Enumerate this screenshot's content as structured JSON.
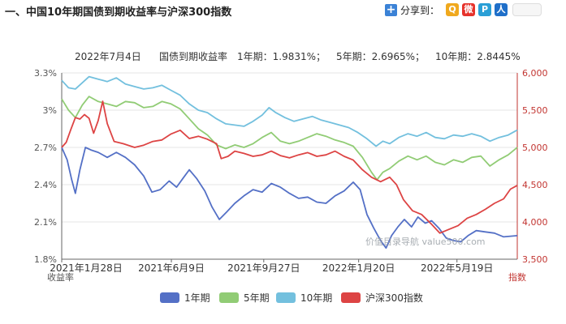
{
  "page_title": "一、中国10年期国债到期收益率与沪深300指数",
  "share": {
    "label": "分享到：",
    "plus_icon": "+",
    "buttons": [
      {
        "name": "qzone",
        "glyph": "Q",
        "color": "#f0a91e"
      },
      {
        "name": "weibo",
        "glyph": "微",
        "color": "#e6322b"
      },
      {
        "name": "tencent",
        "glyph": "P",
        "color": "#2a9fd6"
      },
      {
        "name": "renren",
        "glyph": "人",
        "color": "#1f6fc9"
      }
    ]
  },
  "chart_data": {
    "type": "line",
    "header": {
      "date": "2022年7月4日",
      "name": "国债到期收益率",
      "items": [
        "1年期：1.9831%；",
        "5年期：2.6965%；",
        "10年期：2.8445%"
      ]
    },
    "x_ticks": [
      {
        "label": "2021年1月28日",
        "t": 0.0
      },
      {
        "label": "2021年6月9日",
        "t": 0.2407
      },
      {
        "label": "2021年9月27日",
        "t": 0.4435
      },
      {
        "label": "2022年1月20日",
        "t": 0.6518
      },
      {
        "label": "2022年5月19日",
        "t": 0.8676
      }
    ],
    "left_axis": {
      "label": "收益率",
      "min": 1.8,
      "max": 3.3,
      "ticks": [
        {
          "v": 1.8,
          "label": "1.8%"
        },
        {
          "v": 2.1,
          "label": "2.1%"
        },
        {
          "v": 2.4,
          "label": "2.4%"
        },
        {
          "v": 2.7,
          "label": "2.7%"
        },
        {
          "v": 3.0,
          "label": "3%"
        },
        {
          "v": 3.3,
          "label": "3.3%"
        }
      ]
    },
    "right_axis": {
      "label": "指数",
      "min": 3500,
      "max": 6000,
      "ticks": [
        {
          "v": 3500,
          "label": "3,500"
        },
        {
          "v": 4000,
          "label": "4,000"
        },
        {
          "v": 4500,
          "label": "4,500"
        },
        {
          "v": 5000,
          "label": "5,000"
        },
        {
          "v": 5500,
          "label": "5,500"
        },
        {
          "v": 6000,
          "label": "6,000"
        }
      ]
    },
    "watermark": "价值目录导航 value500.com",
    "series": [
      {
        "name": "1年期",
        "color": "#5470c6",
        "axis": "left",
        "points": [
          [
            0.0,
            2.7
          ],
          [
            0.012,
            2.6
          ],
          [
            0.022,
            2.44
          ],
          [
            0.03,
            2.33
          ],
          [
            0.04,
            2.52
          ],
          [
            0.052,
            2.7
          ],
          [
            0.064,
            2.68
          ],
          [
            0.08,
            2.66
          ],
          [
            0.1,
            2.62
          ],
          [
            0.12,
            2.66
          ],
          [
            0.14,
            2.62
          ],
          [
            0.16,
            2.56
          ],
          [
            0.18,
            2.47
          ],
          [
            0.198,
            2.34
          ],
          [
            0.216,
            2.36
          ],
          [
            0.236,
            2.43
          ],
          [
            0.252,
            2.38
          ],
          [
            0.268,
            2.46
          ],
          [
            0.28,
            2.52
          ],
          [
            0.296,
            2.45
          ],
          [
            0.314,
            2.35
          ],
          [
            0.33,
            2.22
          ],
          [
            0.346,
            2.12
          ],
          [
            0.362,
            2.18
          ],
          [
            0.38,
            2.25
          ],
          [
            0.4,
            2.31
          ],
          [
            0.42,
            2.36
          ],
          [
            0.44,
            2.34
          ],
          [
            0.46,
            2.41
          ],
          [
            0.48,
            2.38
          ],
          [
            0.5,
            2.33
          ],
          [
            0.52,
            2.29
          ],
          [
            0.54,
            2.3
          ],
          [
            0.56,
            2.26
          ],
          [
            0.58,
            2.25
          ],
          [
            0.6,
            2.31
          ],
          [
            0.62,
            2.35
          ],
          [
            0.64,
            2.42
          ],
          [
            0.655,
            2.36
          ],
          [
            0.67,
            2.16
          ],
          [
            0.685,
            2.05
          ],
          [
            0.7,
            1.95
          ],
          [
            0.712,
            1.89
          ],
          [
            0.724,
            1.99
          ],
          [
            0.738,
            2.06
          ],
          [
            0.752,
            2.12
          ],
          [
            0.768,
            2.06
          ],
          [
            0.782,
            2.14
          ],
          [
            0.798,
            2.09
          ],
          [
            0.812,
            2.11
          ],
          [
            0.828,
            2.05
          ],
          [
            0.844,
            1.97
          ],
          [
            0.86,
            1.95
          ],
          [
            0.876,
            1.94
          ],
          [
            0.892,
            1.99
          ],
          [
            0.91,
            2.03
          ],
          [
            0.93,
            2.02
          ],
          [
            0.95,
            2.01
          ],
          [
            0.97,
            1.98
          ],
          [
            1.0,
            1.99
          ]
        ]
      },
      {
        "name": "5年期",
        "color": "#91cc75",
        "axis": "left",
        "points": [
          [
            0.0,
            3.09
          ],
          [
            0.015,
            3.0
          ],
          [
            0.03,
            2.94
          ],
          [
            0.045,
            3.04
          ],
          [
            0.06,
            3.11
          ],
          [
            0.08,
            3.07
          ],
          [
            0.1,
            3.05
          ],
          [
            0.12,
            3.03
          ],
          [
            0.14,
            3.07
          ],
          [
            0.16,
            3.06
          ],
          [
            0.18,
            3.02
          ],
          [
            0.2,
            3.03
          ],
          [
            0.22,
            3.07
          ],
          [
            0.24,
            3.05
          ],
          [
            0.26,
            3.01
          ],
          [
            0.28,
            2.93
          ],
          [
            0.3,
            2.85
          ],
          [
            0.32,
            2.8
          ],
          [
            0.34,
            2.72
          ],
          [
            0.36,
            2.69
          ],
          [
            0.38,
            2.72
          ],
          [
            0.4,
            2.7
          ],
          [
            0.42,
            2.73
          ],
          [
            0.44,
            2.78
          ],
          [
            0.46,
            2.82
          ],
          [
            0.48,
            2.75
          ],
          [
            0.5,
            2.73
          ],
          [
            0.52,
            2.75
          ],
          [
            0.54,
            2.78
          ],
          [
            0.56,
            2.81
          ],
          [
            0.58,
            2.79
          ],
          [
            0.6,
            2.76
          ],
          [
            0.62,
            2.74
          ],
          [
            0.64,
            2.71
          ],
          [
            0.66,
            2.62
          ],
          [
            0.68,
            2.5
          ],
          [
            0.692,
            2.44
          ],
          [
            0.705,
            2.5
          ],
          [
            0.72,
            2.53
          ],
          [
            0.74,
            2.59
          ],
          [
            0.76,
            2.63
          ],
          [
            0.78,
            2.6
          ],
          [
            0.8,
            2.63
          ],
          [
            0.82,
            2.58
          ],
          [
            0.84,
            2.56
          ],
          [
            0.86,
            2.6
          ],
          [
            0.88,
            2.58
          ],
          [
            0.9,
            2.62
          ],
          [
            0.92,
            2.63
          ],
          [
            0.94,
            2.55
          ],
          [
            0.96,
            2.6
          ],
          [
            0.98,
            2.64
          ],
          [
            1.0,
            2.7
          ]
        ]
      },
      {
        "name": "10年期",
        "color": "#73c0de",
        "axis": "left",
        "points": [
          [
            0.0,
            3.24
          ],
          [
            0.015,
            3.18
          ],
          [
            0.03,
            3.17
          ],
          [
            0.045,
            3.22
          ],
          [
            0.06,
            3.27
          ],
          [
            0.08,
            3.25
          ],
          [
            0.1,
            3.23
          ],
          [
            0.12,
            3.26
          ],
          [
            0.14,
            3.21
          ],
          [
            0.16,
            3.19
          ],
          [
            0.18,
            3.17
          ],
          [
            0.2,
            3.18
          ],
          [
            0.22,
            3.2
          ],
          [
            0.24,
            3.16
          ],
          [
            0.26,
            3.12
          ],
          [
            0.28,
            3.05
          ],
          [
            0.3,
            3.0
          ],
          [
            0.32,
            2.98
          ],
          [
            0.34,
            2.93
          ],
          [
            0.36,
            2.89
          ],
          [
            0.38,
            2.88
          ],
          [
            0.4,
            2.87
          ],
          [
            0.42,
            2.91
          ],
          [
            0.44,
            2.96
          ],
          [
            0.455,
            3.02
          ],
          [
            0.47,
            2.98
          ],
          [
            0.49,
            2.94
          ],
          [
            0.51,
            2.91
          ],
          [
            0.53,
            2.93
          ],
          [
            0.55,
            2.95
          ],
          [
            0.57,
            2.92
          ],
          [
            0.59,
            2.9
          ],
          [
            0.61,
            2.88
          ],
          [
            0.63,
            2.86
          ],
          [
            0.65,
            2.82
          ],
          [
            0.67,
            2.77
          ],
          [
            0.69,
            2.71
          ],
          [
            0.705,
            2.75
          ],
          [
            0.72,
            2.73
          ],
          [
            0.74,
            2.78
          ],
          [
            0.76,
            2.81
          ],
          [
            0.78,
            2.79
          ],
          [
            0.8,
            2.82
          ],
          [
            0.82,
            2.78
          ],
          [
            0.84,
            2.77
          ],
          [
            0.86,
            2.8
          ],
          [
            0.88,
            2.79
          ],
          [
            0.9,
            2.81
          ],
          [
            0.92,
            2.79
          ],
          [
            0.94,
            2.75
          ],
          [
            0.96,
            2.78
          ],
          [
            0.98,
            2.8
          ],
          [
            1.0,
            2.84
          ]
        ]
      },
      {
        "name": "沪深300指数",
        "color": "#dd4444",
        "axis": "right",
        "points": [
          [
            0.0,
            5000
          ],
          [
            0.01,
            5070
          ],
          [
            0.02,
            5240
          ],
          [
            0.03,
            5400
          ],
          [
            0.04,
            5380
          ],
          [
            0.05,
            5440
          ],
          [
            0.06,
            5390
          ],
          [
            0.07,
            5190
          ],
          [
            0.08,
            5360
          ],
          [
            0.09,
            5620
          ],
          [
            0.1,
            5320
          ],
          [
            0.115,
            5080
          ],
          [
            0.135,
            5050
          ],
          [
            0.16,
            5000
          ],
          [
            0.18,
            5030
          ],
          [
            0.2,
            5080
          ],
          [
            0.22,
            5100
          ],
          [
            0.24,
            5180
          ],
          [
            0.26,
            5230
          ],
          [
            0.28,
            5120
          ],
          [
            0.3,
            5150
          ],
          [
            0.32,
            5110
          ],
          [
            0.34,
            5050
          ],
          [
            0.35,
            4850
          ],
          [
            0.365,
            4880
          ],
          [
            0.38,
            4950
          ],
          [
            0.4,
            4920
          ],
          [
            0.42,
            4880
          ],
          [
            0.44,
            4900
          ],
          [
            0.46,
            4950
          ],
          [
            0.48,
            4890
          ],
          [
            0.5,
            4860
          ],
          [
            0.52,
            4900
          ],
          [
            0.54,
            4930
          ],
          [
            0.56,
            4880
          ],
          [
            0.58,
            4900
          ],
          [
            0.6,
            4950
          ],
          [
            0.62,
            4880
          ],
          [
            0.64,
            4830
          ],
          [
            0.66,
            4700
          ],
          [
            0.68,
            4600
          ],
          [
            0.7,
            4540
          ],
          [
            0.72,
            4600
          ],
          [
            0.735,
            4500
          ],
          [
            0.75,
            4300
          ],
          [
            0.77,
            4150
          ],
          [
            0.79,
            4100
          ],
          [
            0.81,
            3980
          ],
          [
            0.83,
            3850
          ],
          [
            0.85,
            3900
          ],
          [
            0.87,
            3950
          ],
          [
            0.89,
            4050
          ],
          [
            0.91,
            4100
          ],
          [
            0.93,
            4170
          ],
          [
            0.95,
            4250
          ],
          [
            0.97,
            4310
          ],
          [
            0.985,
            4440
          ],
          [
            1.0,
            4490
          ]
        ]
      }
    ],
    "legend": [
      "1年期",
      "5年期",
      "10年期",
      "沪深300指数"
    ]
  }
}
